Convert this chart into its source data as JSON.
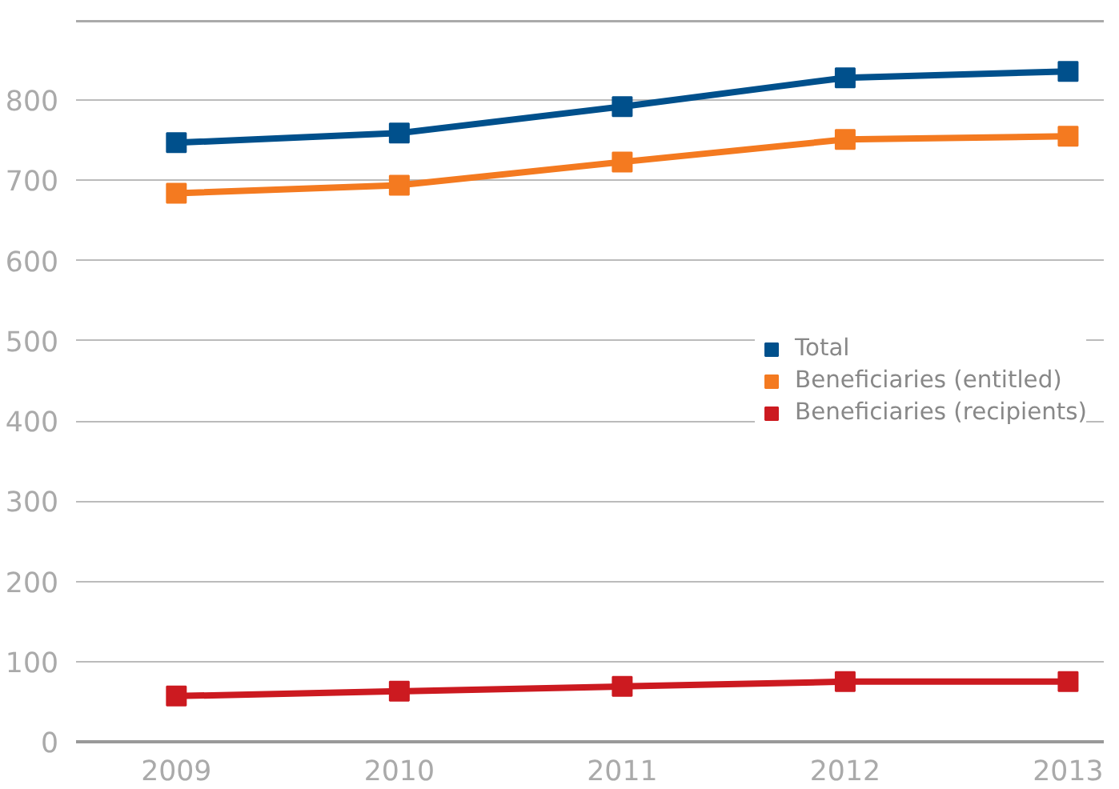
{
  "chart_data": {
    "type": "line",
    "categories": [
      "2009",
      "2010",
      "2011",
      "2012",
      "2013"
    ],
    "series": [
      {
        "name": "Total",
        "color": "#00508c",
        "values": [
          747,
          759,
          792,
          828,
          836
        ]
      },
      {
        "name": "Beneficiaries (entitled)",
        "color": "#f47a20",
        "values": [
          684,
          694,
          723,
          751,
          755
        ]
      },
      {
        "name": "Beneficiaries (recipients)",
        "color": "#cc1a20",
        "values": [
          57,
          63,
          69,
          75,
          75
        ]
      }
    ],
    "ylim": [
      0,
      900
    ],
    "yticks": [
      0,
      100,
      200,
      300,
      400,
      500,
      600,
      700,
      800
    ],
    "grid": "y",
    "legend": "right",
    "marker": "square",
    "line_style": "solid"
  }
}
